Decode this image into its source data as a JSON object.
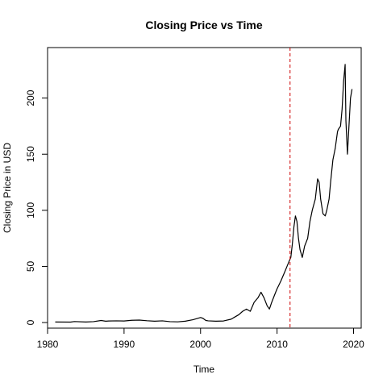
{
  "chart_data": {
    "type": "line",
    "title": "Closing Price vs Time",
    "xlabel": "Time",
    "ylabel": "Closing Price in USD",
    "xlim": [
      1980,
      2021
    ],
    "ylim": [
      -5,
      245
    ],
    "x_ticks": [
      1980,
      1990,
      2000,
      2010,
      2020
    ],
    "y_ticks": [
      0,
      50,
      100,
      150,
      200
    ],
    "grid": false,
    "legend": "none",
    "line_color": "#000000",
    "reference_line": {
      "x": 2011.7,
      "color": "#cc0000",
      "style": "dashed"
    },
    "series": [
      {
        "x": [
          1981,
          1983,
          1983.5,
          1985,
          1986,
          1987,
          1987.6,
          1988,
          1989,
          1990,
          1991,
          1992,
          1993,
          1994,
          1995,
          1996,
          1997,
          1998,
          1999,
          2000,
          2000.3,
          2000.7,
          2001,
          2002,
          2003,
          2004,
          2004.5,
          2005,
          2005.5,
          2006,
          2006.5,
          2007,
          2007.5,
          2007.9,
          2008.3,
          2008.7,
          2009,
          2009.3,
          2009.7,
          2010,
          2010.5,
          2011,
          2011.3,
          2011.6,
          2011.8,
          2012,
          2012.2,
          2012.4,
          2012.6,
          2012.8,
          2013,
          2013.3,
          2013.6,
          2014,
          2014.3,
          2014.6,
          2015,
          2015.3,
          2015.5,
          2015.7,
          2016,
          2016.3,
          2016.5,
          2016.8,
          2017,
          2017.3,
          2017.6,
          2017.9,
          2018,
          2018.3,
          2018.5,
          2018.7,
          2018.9,
          2019,
          2019.2,
          2019.4,
          2019.6,
          2019.8
        ],
        "y": [
          0.5,
          0.4,
          0.9,
          0.5,
          0.8,
          1.8,
          1.2,
          1.4,
          1.5,
          1.4,
          2.0,
          2.2,
          1.6,
          1.2,
          1.5,
          0.8,
          0.6,
          1.2,
          2.5,
          4.5,
          3.8,
          1.8,
          1.5,
          1.2,
          1.4,
          3.0,
          5.0,
          7.0,
          10.0,
          12.0,
          10.0,
          18.0,
          22.0,
          27.0,
          22.0,
          15.0,
          12.0,
          18.0,
          25.0,
          30.0,
          37.0,
          45.0,
          50.0,
          55.0,
          58.0,
          70.0,
          85.0,
          95.0,
          90.0,
          75.0,
          65.0,
          58.0,
          68.0,
          75.0,
          90.0,
          100.0,
          110.0,
          128.0,
          125.0,
          110.0,
          97.0,
          95.0,
          100.0,
          110.0,
          125.0,
          145.0,
          155.0,
          170.0,
          172.0,
          175.0,
          190.0,
          215.0,
          230.0,
          180.0,
          150.0,
          175.0,
          200.0,
          208.0
        ]
      }
    ]
  }
}
